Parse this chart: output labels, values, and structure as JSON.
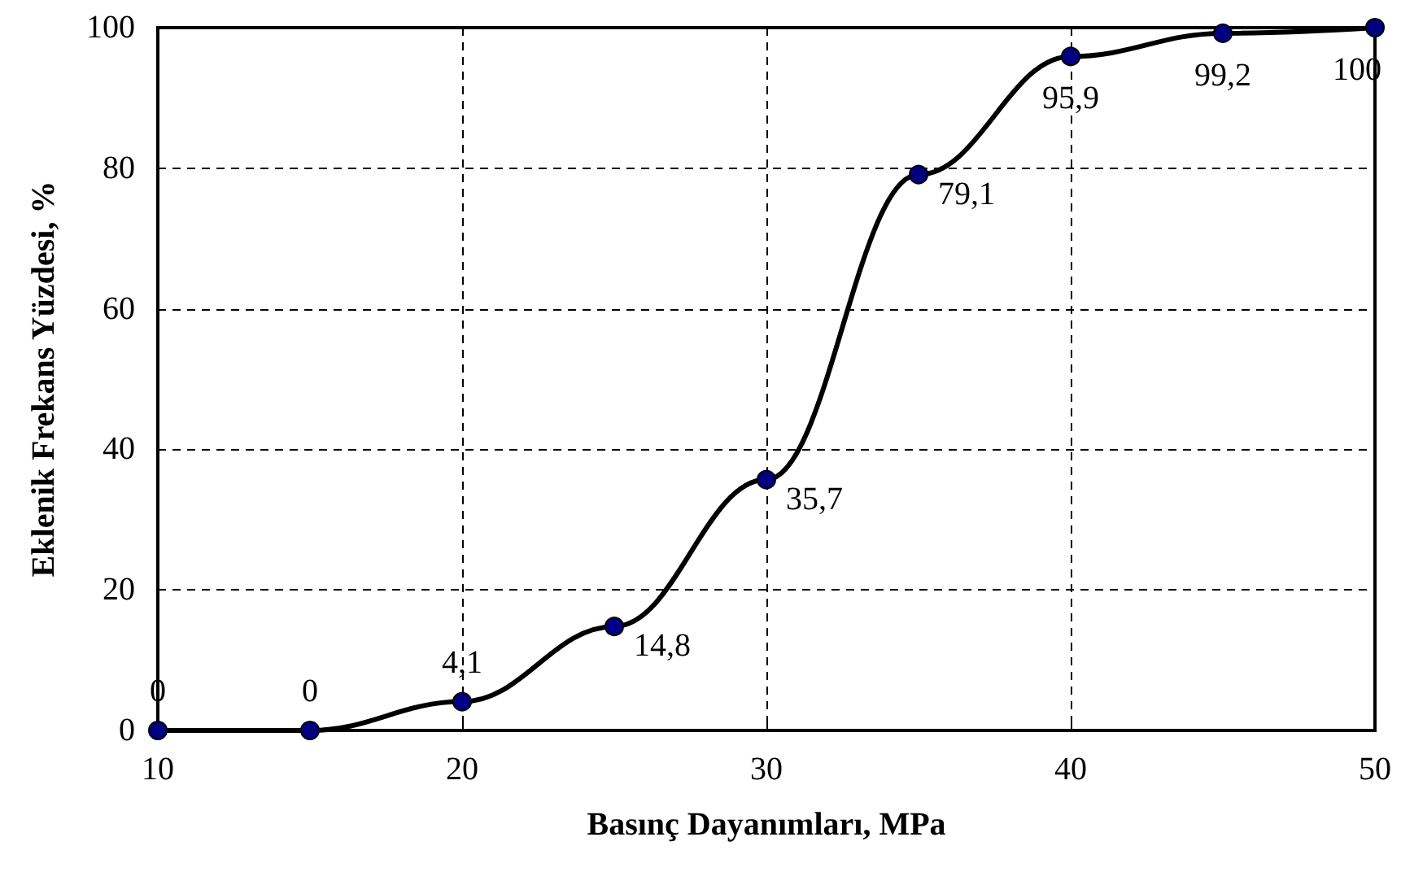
{
  "chart_data": {
    "type": "line",
    "xlabel": "Basınç Dayanımları, MPa",
    "ylabel": "Eklenik Frekans Yüzdesi, %",
    "x": [
      10,
      15,
      20,
      25,
      30,
      35,
      40,
      45,
      50
    ],
    "series": [
      {
        "color": "#000000",
        "values": [
          0,
          0,
          4.1,
          14.8,
          35.7,
          79.1,
          95.9,
          99.2,
          100
        ],
        "value_labels": [
          "0",
          "0",
          "4,1",
          "14,8",
          "35,7",
          "79,1",
          "95,9",
          "99,2",
          "100"
        ]
      }
    ],
    "xlim": [
      10,
      50
    ],
    "xticks": [
      10,
      20,
      30,
      40,
      50
    ],
    "ylim": [
      0,
      100
    ],
    "yticks": [
      0,
      20,
      40,
      60,
      80,
      100
    ],
    "grid": true,
    "marker": "circle",
    "line_style": "solid"
  }
}
